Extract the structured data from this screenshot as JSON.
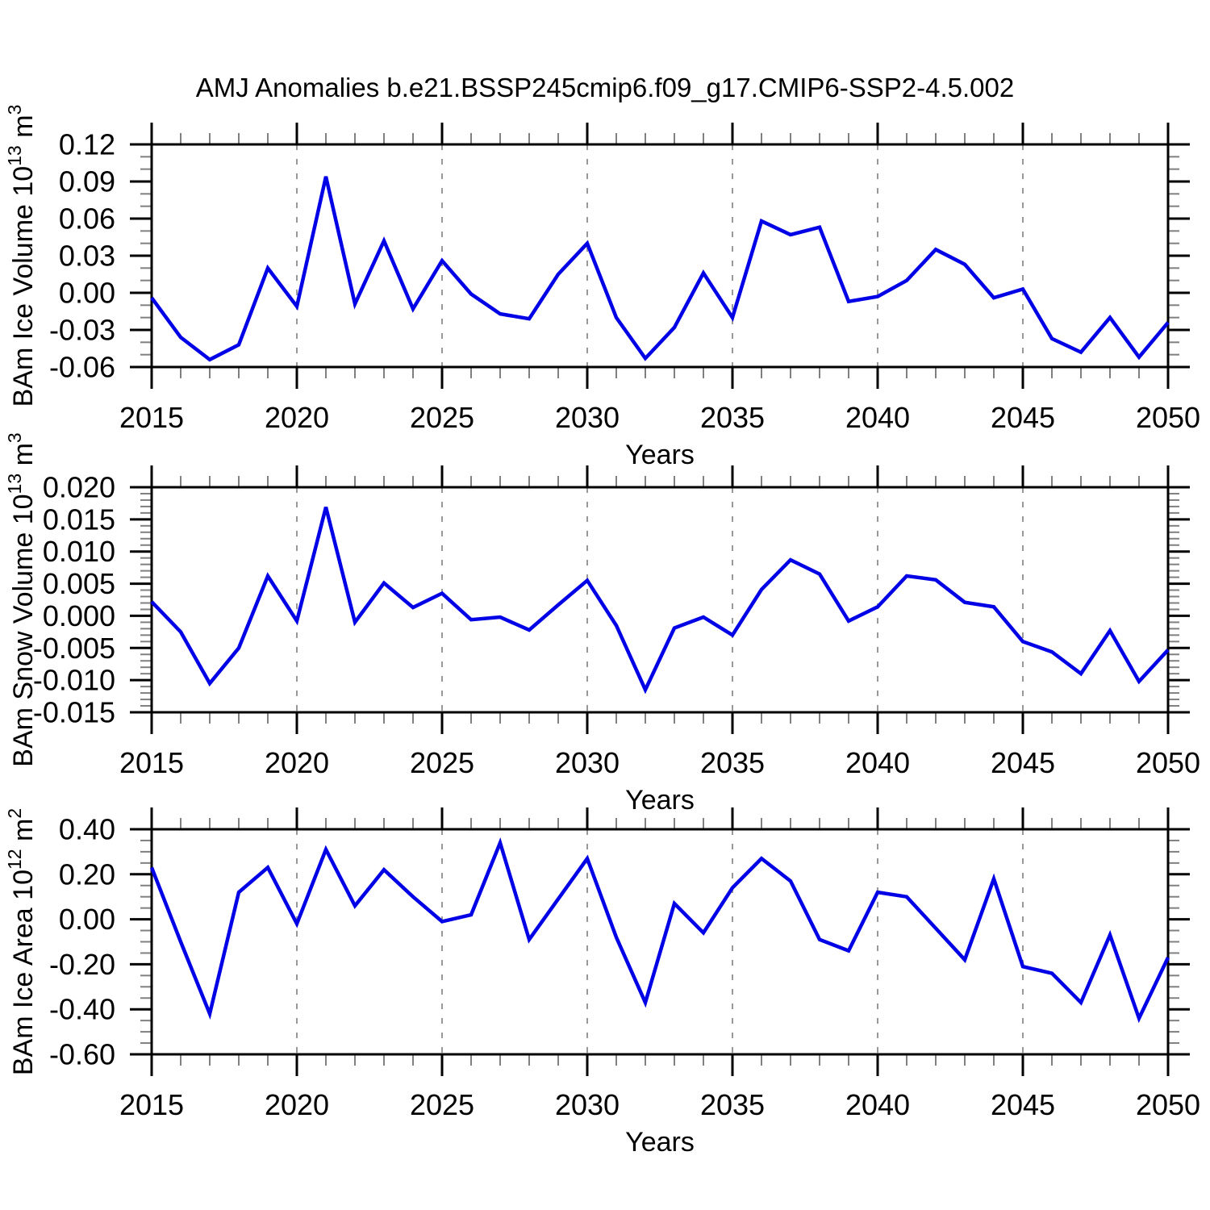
{
  "chart_data": {
    "type": "line",
    "title": "AMJ Anomalies b.e21.BSSP245cmip6.f09_g17.CMIP6-SSP2-4.5.002",
    "xlabel": "Years",
    "x": [
      2015,
      2016,
      2017,
      2018,
      2019,
      2020,
      2021,
      2022,
      2023,
      2024,
      2025,
      2026,
      2027,
      2028,
      2029,
      2030,
      2031,
      2032,
      2033,
      2034,
      2035,
      2036,
      2037,
      2038,
      2039,
      2040,
      2041,
      2042,
      2043,
      2044,
      2045,
      2046,
      2047,
      2048,
      2049,
      2050
    ],
    "xlim": [
      2015,
      2050
    ],
    "xtick_major": 5,
    "xtick_minor": 1,
    "grid": "vertical-dashed-at-inner-major-ticks",
    "legend": "none",
    "line_color": "#0000e6",
    "grid_color": "#999999",
    "minor_tick_color": "#808080",
    "axis_color": "#000000",
    "panels": [
      {
        "name": "ice-volume",
        "ylabel": "BAm Ice Volume 10^13 m^3",
        "ylabel_parts": [
          {
            "t": "BAm Ice Volume 10"
          },
          {
            "t": "13",
            "sup": true
          },
          {
            "t": " m"
          },
          {
            "t": "3",
            "sup": true
          }
        ],
        "ylim": [
          -0.06,
          0.12
        ],
        "ytick_major": 0.03,
        "ytick_minor": 0.01,
        "ydecimals": 2,
        "values": [
          -0.004,
          -0.036,
          -0.054,
          -0.042,
          0.02,
          -0.011,
          0.094,
          -0.009,
          0.042,
          -0.013,
          0.026,
          -0.001,
          -0.017,
          -0.021,
          0.015,
          0.04,
          -0.02,
          -0.053,
          -0.028,
          0.016,
          -0.02,
          0.058,
          0.047,
          0.053,
          -0.007,
          -0.003,
          0.01,
          0.035,
          0.023,
          -0.004,
          0.003,
          -0.037,
          -0.048,
          -0.02,
          -0.052,
          -0.024
        ]
      },
      {
        "name": "snow-volume",
        "ylabel": "BAm Snow Volume 10^13 m^3",
        "ylabel_parts": [
          {
            "t": "BAm Snow Volume 10"
          },
          {
            "t": "13",
            "sup": true
          },
          {
            "t": " m"
          },
          {
            "t": "3",
            "sup": true
          }
        ],
        "ylim": [
          -0.015,
          0.02
        ],
        "ytick_major": 0.005,
        "ytick_minor": 0.001,
        "ydecimals": 3,
        "values": [
          0.0022,
          -0.0025,
          -0.0105,
          -0.005,
          0.0062,
          -0.0008,
          0.0169,
          -0.001,
          0.0051,
          0.0013,
          0.0035,
          -0.0006,
          -0.0002,
          -0.0022,
          0.0017,
          0.0055,
          -0.0015,
          -0.0115,
          -0.0019,
          -0.0002,
          -0.003,
          0.0041,
          0.0087,
          0.0065,
          -0.0008,
          0.0014,
          0.0062,
          0.0056,
          0.0021,
          0.0014,
          -0.004,
          -0.0056,
          -0.009,
          -0.0023,
          -0.0102,
          -0.0053
        ]
      },
      {
        "name": "ice-area",
        "ylabel": "BAm Ice Area 10^12 m^2",
        "ylabel_parts": [
          {
            "t": "BAm Ice Area 10"
          },
          {
            "t": "12",
            "sup": true
          },
          {
            "t": " m"
          },
          {
            "t": "2",
            "sup": true
          }
        ],
        "ylim": [
          -0.6,
          0.4
        ],
        "ytick_major": 0.2,
        "ytick_minor": 0.05,
        "ydecimals": 2,
        "values": [
          0.23,
          -0.1,
          -0.42,
          0.12,
          0.23,
          -0.02,
          0.31,
          0.06,
          0.22,
          0.1,
          -0.01,
          0.02,
          0.34,
          -0.09,
          0.09,
          0.27,
          -0.08,
          -0.37,
          0.07,
          -0.06,
          0.14,
          0.27,
          0.17,
          -0.09,
          -0.14,
          0.12,
          0.1,
          -0.04,
          -0.18,
          0.18,
          -0.21,
          -0.24,
          -0.37,
          -0.07,
          -0.44,
          -0.17
        ]
      }
    ]
  }
}
